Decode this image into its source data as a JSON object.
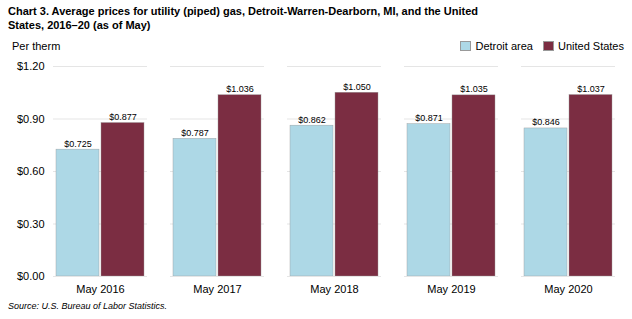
{
  "chart_data": {
    "type": "bar",
    "title": "Chart 3. Average prices for utility (piped) gas, Detroit-Warren-Dearborn, MI, and the United\nStates, 2016–20  (as of May)",
    "ylabel": "Per therm",
    "source": "Source: U.S. Bureau of Labor Statistics.",
    "categories": [
      "May 2016",
      "May 2017",
      "May 2018",
      "May 2019",
      "May 2020"
    ],
    "series": [
      {
        "name": "Detroit area",
        "color": "#add8e6",
        "values": [
          0.725,
          0.787,
          0.862,
          0.871,
          0.846
        ],
        "value_labels": [
          "$0.725",
          "$0.787",
          "$0.862",
          "$0.871",
          "$0.846"
        ]
      },
      {
        "name": "United States",
        "color": "#7b2d42",
        "values": [
          0.877,
          1.036,
          1.05,
          1.035,
          1.037
        ],
        "value_labels": [
          "$0.877",
          "$1.036",
          "$1.050",
          "$1.035",
          "$1.037"
        ]
      }
    ],
    "ylim": [
      0,
      1.2
    ],
    "yticks": [
      {
        "value": 0.0,
        "label": "$0.00"
      },
      {
        "value": 0.3,
        "label": "$0.30"
      },
      {
        "value": 0.6,
        "label": "$0.60"
      },
      {
        "value": 0.9,
        "label": "$0.90"
      },
      {
        "value": 1.2,
        "label": "$1.20"
      }
    ],
    "grid": true,
    "legend": "upper right",
    "data_labels": true
  }
}
